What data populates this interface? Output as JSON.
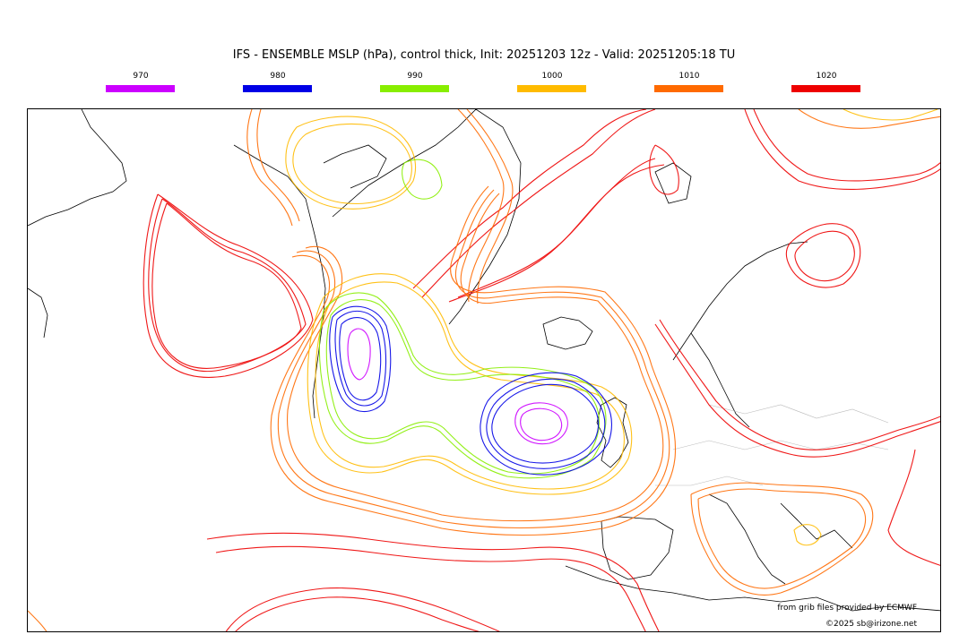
{
  "title": "IFS - ENSEMBLE MSLP (hPa), control thick, Init: 20251203 12z - Valid: 20251205:18 TU",
  "legend": [
    {
      "label": "970",
      "color": "#cc00ff"
    },
    {
      "label": "980",
      "color": "#0000e6"
    },
    {
      "label": "990",
      "color": "#88ee00"
    },
    {
      "label": "1000",
      "color": "#ffbb00"
    },
    {
      "label": "1010",
      "color": "#ff6a00"
    },
    {
      "label": "1020",
      "color": "#ee0000"
    }
  ],
  "credits": {
    "source": "from grib files provided by ECMWF",
    "copyright": "©2025 sb@irizone.net"
  }
}
